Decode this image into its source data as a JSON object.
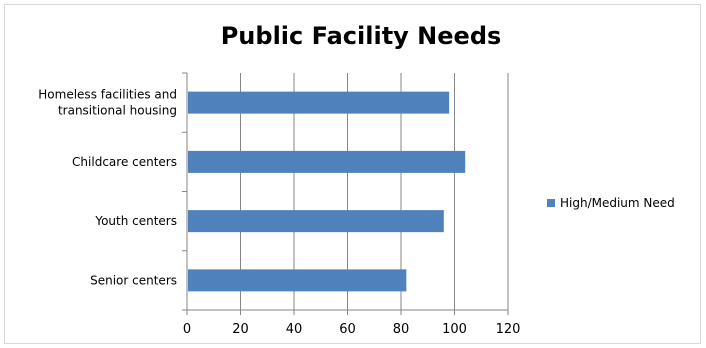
{
  "chart_data": {
    "type": "bar",
    "orientation": "horizontal",
    "title": "Public Facility Needs",
    "xlabel": "",
    "ylabel": "",
    "categories": [
      [
        "Homeless facilities and",
        "transitional housing"
      ],
      [
        "Childcare centers"
      ],
      [
        "Youth centers"
      ],
      [
        "Senior centers"
      ]
    ],
    "series": [
      {
        "name": "High/Medium Need",
        "values": [
          98,
          104,
          96,
          82
        ],
        "color": "#4f81bd"
      }
    ],
    "xlim": [
      0,
      120
    ],
    "ticks": [
      0,
      20,
      40,
      60,
      80,
      100,
      120
    ],
    "grid": "vertical",
    "legend": "right"
  }
}
